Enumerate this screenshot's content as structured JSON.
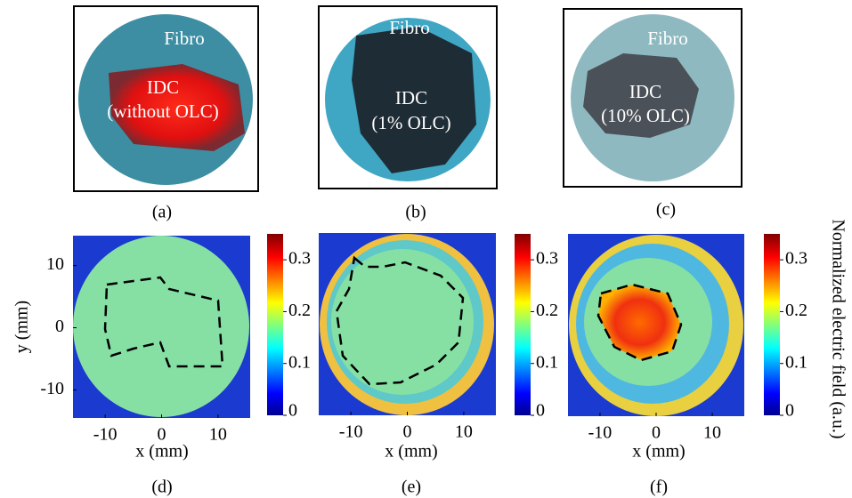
{
  "panels": [
    {
      "label": "(a)",
      "texts": [
        "Fibro",
        "IDC",
        "(without OLC)"
      ]
    },
    {
      "label": "(b)",
      "texts": [
        "Fibro",
        "IDC",
        "(1% OLC)"
      ]
    },
    {
      "label": "(c)",
      "texts": [
        "Fibro",
        "IDC",
        "(10% OLC)"
      ]
    }
  ],
  "maps": [
    {
      "label": "(d)",
      "x_label": "x (mm)",
      "y_label": "y (mm)",
      "xlim": [
        -15.7,
        15.7
      ],
      "ylim": [
        -14.5,
        14.8
      ],
      "xticks": [
        -10,
        0,
        10
      ],
      "yticks": [
        -10,
        0,
        10
      ],
      "clim": [
        0,
        0.35
      ],
      "cticks": [
        0,
        0.1,
        0.2,
        0.3
      ]
    },
    {
      "label": "(e)",
      "x_label": "x (mm)",
      "xlim": [
        -15.7,
        15.7
      ],
      "xticks": [
        -10,
        0,
        10
      ],
      "clim": [
        0,
        0.35
      ],
      "cticks": [
        0,
        0.1,
        0.2,
        0.3
      ]
    },
    {
      "label": "(f)",
      "x_label": "x (mm)",
      "xlim": [
        -15.7,
        15.7
      ],
      "xticks": [
        -10,
        0,
        10
      ],
      "clim": [
        0,
        0.35
      ],
      "cticks": [
        0,
        0.1,
        0.2,
        0.3
      ]
    }
  ],
  "colorbar_label": "Normalized electric field (a.u.)"
}
